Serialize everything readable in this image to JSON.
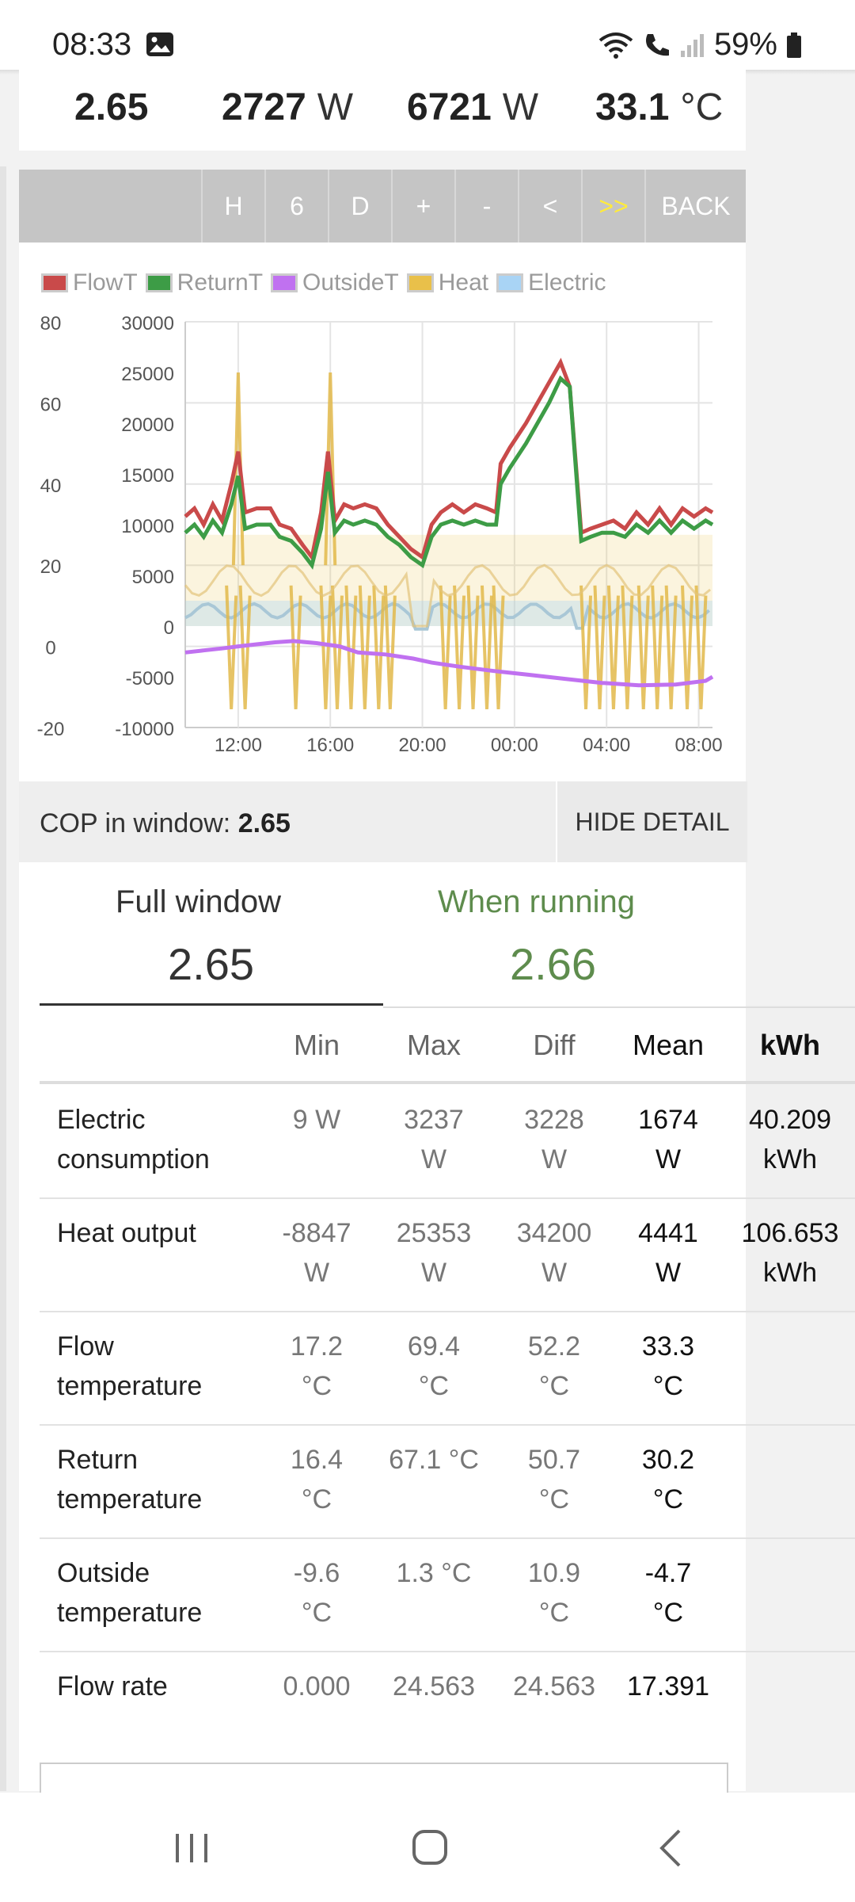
{
  "status": {
    "time": "08:33",
    "battery": "59%"
  },
  "stats": [
    {
      "value": "2.65",
      "unit": ""
    },
    {
      "value": "2727",
      "unit": "W"
    },
    {
      "value": "6721",
      "unit": "W"
    },
    {
      "value": "33.1",
      "unit": "°C"
    }
  ],
  "toolbar": [
    "H",
    "6",
    "D",
    "+",
    "-",
    "<",
    ">>",
    "BACK"
  ],
  "chart_data": {
    "type": "line",
    "legend": [
      "FlowT",
      "ReturnT",
      "OutsideT",
      "Heat",
      "Electric"
    ],
    "colors": {
      "FlowT": "#c94a4a",
      "ReturnT": "#3d9c46",
      "OutsideT": "#c071f0",
      "Heat": "#e9c04a",
      "Electric": "#a9d4f5"
    },
    "y_left_ticks": [
      "80",
      "60",
      "40",
      "20",
      "0",
      "-20"
    ],
    "y_right_ticks": [
      "30000",
      "25000",
      "20000",
      "15000",
      "10000",
      "5000",
      "0",
      "-5000",
      "-10000"
    ],
    "x_ticks": [
      "12:00",
      "16:00",
      "20:00",
      "00:00",
      "04:00",
      "08:00"
    ],
    "y_left_range": [
      -20,
      80
    ],
    "y_right_range": [
      -10000,
      30000
    ],
    "x_range_hours": [
      9.7,
      32.6
    ],
    "flow": [
      [
        9.7,
        32
      ],
      [
        10.1,
        34
      ],
      [
        10.5,
        30
      ],
      [
        10.9,
        35
      ],
      [
        11.3,
        31
      ],
      [
        11.7,
        40
      ],
      [
        12.0,
        48
      ],
      [
        12.3,
        33
      ],
      [
        12.8,
        34
      ],
      [
        13.4,
        34
      ],
      [
        13.8,
        30
      ],
      [
        14.3,
        29
      ],
      [
        14.8,
        25
      ],
      [
        15.2,
        22
      ],
      [
        15.6,
        33
      ],
      [
        15.9,
        48
      ],
      [
        16.2,
        31
      ],
      [
        16.6,
        35
      ],
      [
        17.0,
        34
      ],
      [
        17.5,
        35
      ],
      [
        18.0,
        34
      ],
      [
        18.5,
        30
      ],
      [
        19.0,
        27
      ],
      [
        19.5,
        24
      ],
      [
        20.0,
        22
      ],
      [
        20.4,
        30
      ],
      [
        20.8,
        33
      ],
      [
        21.3,
        35
      ],
      [
        21.8,
        33
      ],
      [
        22.3,
        35
      ],
      [
        22.8,
        34
      ],
      [
        23.2,
        33
      ],
      [
        23.4,
        45
      ],
      [
        23.8,
        49
      ],
      [
        24.5,
        55
      ],
      [
        25.5,
        65
      ],
      [
        26.0,
        70
      ],
      [
        26.4,
        64
      ],
      [
        26.9,
        28
      ],
      [
        27.3,
        29
      ],
      [
        27.8,
        30
      ],
      [
        28.3,
        31
      ],
      [
        28.8,
        29
      ],
      [
        29.3,
        33
      ],
      [
        29.8,
        30
      ],
      [
        30.3,
        34
      ],
      [
        30.8,
        30
      ],
      [
        31.3,
        34
      ],
      [
        31.8,
        32
      ],
      [
        32.3,
        34
      ],
      [
        32.6,
        33
      ]
    ],
    "ret": [
      [
        9.7,
        28
      ],
      [
        10.1,
        30
      ],
      [
        10.5,
        27
      ],
      [
        10.9,
        31
      ],
      [
        11.3,
        28
      ],
      [
        11.7,
        35
      ],
      [
        12.0,
        42
      ],
      [
        12.3,
        29
      ],
      [
        12.8,
        30
      ],
      [
        13.4,
        30
      ],
      [
        13.8,
        27
      ],
      [
        14.3,
        26
      ],
      [
        14.8,
        23
      ],
      [
        15.2,
        20
      ],
      [
        15.6,
        29
      ],
      [
        15.9,
        43
      ],
      [
        16.2,
        28
      ],
      [
        16.6,
        31
      ],
      [
        17.0,
        30
      ],
      [
        17.5,
        31
      ],
      [
        18.0,
        30
      ],
      [
        18.5,
        27
      ],
      [
        19.0,
        25
      ],
      [
        19.5,
        22
      ],
      [
        20.0,
        20
      ],
      [
        20.4,
        27
      ],
      [
        20.8,
        30
      ],
      [
        21.3,
        31
      ],
      [
        21.8,
        30
      ],
      [
        22.3,
        31
      ],
      [
        22.8,
        30
      ],
      [
        23.2,
        30
      ],
      [
        23.4,
        40
      ],
      [
        23.8,
        44
      ],
      [
        24.5,
        50
      ],
      [
        25.5,
        60
      ],
      [
        26.0,
        66
      ],
      [
        26.4,
        64
      ],
      [
        26.9,
        26
      ],
      [
        27.3,
        27
      ],
      [
        27.8,
        28
      ],
      [
        28.3,
        28
      ],
      [
        28.8,
        27
      ],
      [
        29.3,
        30
      ],
      [
        29.8,
        28
      ],
      [
        30.3,
        31
      ],
      [
        30.8,
        28
      ],
      [
        31.3,
        31
      ],
      [
        31.8,
        29
      ],
      [
        32.3,
        31
      ],
      [
        32.6,
        30
      ]
    ],
    "outside": [
      [
        9.7,
        -1.5
      ],
      [
        10.5,
        -1
      ],
      [
        11.3,
        -0.5
      ],
      [
        12.0,
        0
      ],
      [
        12.8,
        0.5
      ],
      [
        13.6,
        1
      ],
      [
        14.4,
        1.3
      ],
      [
        15.4,
        0.8
      ],
      [
        16.4,
        0
      ],
      [
        17.2,
        -1.5
      ],
      [
        18.4,
        -2
      ],
      [
        19.6,
        -3
      ],
      [
        20.4,
        -4
      ],
      [
        21.6,
        -5
      ],
      [
        23.0,
        -6
      ],
      [
        24.6,
        -7
      ],
      [
        26.2,
        -8
      ],
      [
        27.8,
        -9
      ],
      [
        29.4,
        -9.6
      ],
      [
        31.0,
        -9.4
      ],
      [
        32.3,
        -8.5
      ],
      [
        32.6,
        -7.5
      ]
    ],
    "heat_spikes_hours": [
      11.7,
      12.3,
      14.5,
      15.8,
      16.3,
      16.9,
      17.5,
      18.1,
      18.6,
      21.0,
      21.6,
      22.2,
      22.8,
      23.3,
      27.1,
      27.7,
      28.3,
      28.9,
      29.6,
      30.2,
      30.8,
      31.5,
      32.1
    ],
    "heat_peaks_hours": [
      12.0,
      16.0
    ]
  },
  "cop": {
    "label": "COP in window:",
    "value": "2.65",
    "hide": "HIDE DETAIL"
  },
  "tabs": [
    {
      "label": "Full window",
      "value": "2.65"
    },
    {
      "label": "When running",
      "value": "2.66"
    }
  ],
  "table": {
    "headers": [
      "Min",
      "Max",
      "Diff",
      "Mean",
      "kWh"
    ],
    "rows": [
      {
        "name": [
          "Electric",
          "consumption"
        ],
        "min": [
          "9 W"
        ],
        "max": [
          "3237",
          "W"
        ],
        "diff": [
          "3228",
          "W"
        ],
        "mean": [
          "1674",
          "W"
        ],
        "kwh": [
          "40.209",
          "kWh"
        ]
      },
      {
        "name": [
          "Heat output"
        ],
        "min": [
          "-8847",
          "W"
        ],
        "max": [
          "25353",
          "W"
        ],
        "diff": [
          "34200",
          "W"
        ],
        "mean": [
          "4441",
          "W"
        ],
        "kwh": [
          "106.653",
          "kWh"
        ]
      },
      {
        "name": [
          "Flow",
          "temperature"
        ],
        "min": [
          "17.2",
          "°C"
        ],
        "max": [
          "69.4",
          "°C"
        ],
        "diff": [
          "52.2",
          "°C"
        ],
        "mean": [
          "33.3",
          "°C"
        ],
        "kwh": []
      },
      {
        "name": [
          "Return",
          "temperature"
        ],
        "min": [
          "16.4",
          "°C"
        ],
        "max": [
          "67.1 °C"
        ],
        "diff": [
          "50.7",
          "°C"
        ],
        "mean": [
          "30.2",
          "°C"
        ],
        "kwh": []
      },
      {
        "name": [
          "Outside",
          "temperature"
        ],
        "min": [
          "-9.6",
          "°C"
        ],
        "max": [
          "1.3 °C"
        ],
        "diff": [
          "10.9",
          "°C"
        ],
        "mean": [
          "-4.7",
          "°C"
        ],
        "kwh": []
      },
      {
        "name": [
          "Flow rate"
        ],
        "min": [
          "0.000"
        ],
        "max": [
          "24.563"
        ],
        "diff": [
          "24.563"
        ],
        "mean": [
          "17.391"
        ],
        "kwh": []
      }
    ]
  }
}
